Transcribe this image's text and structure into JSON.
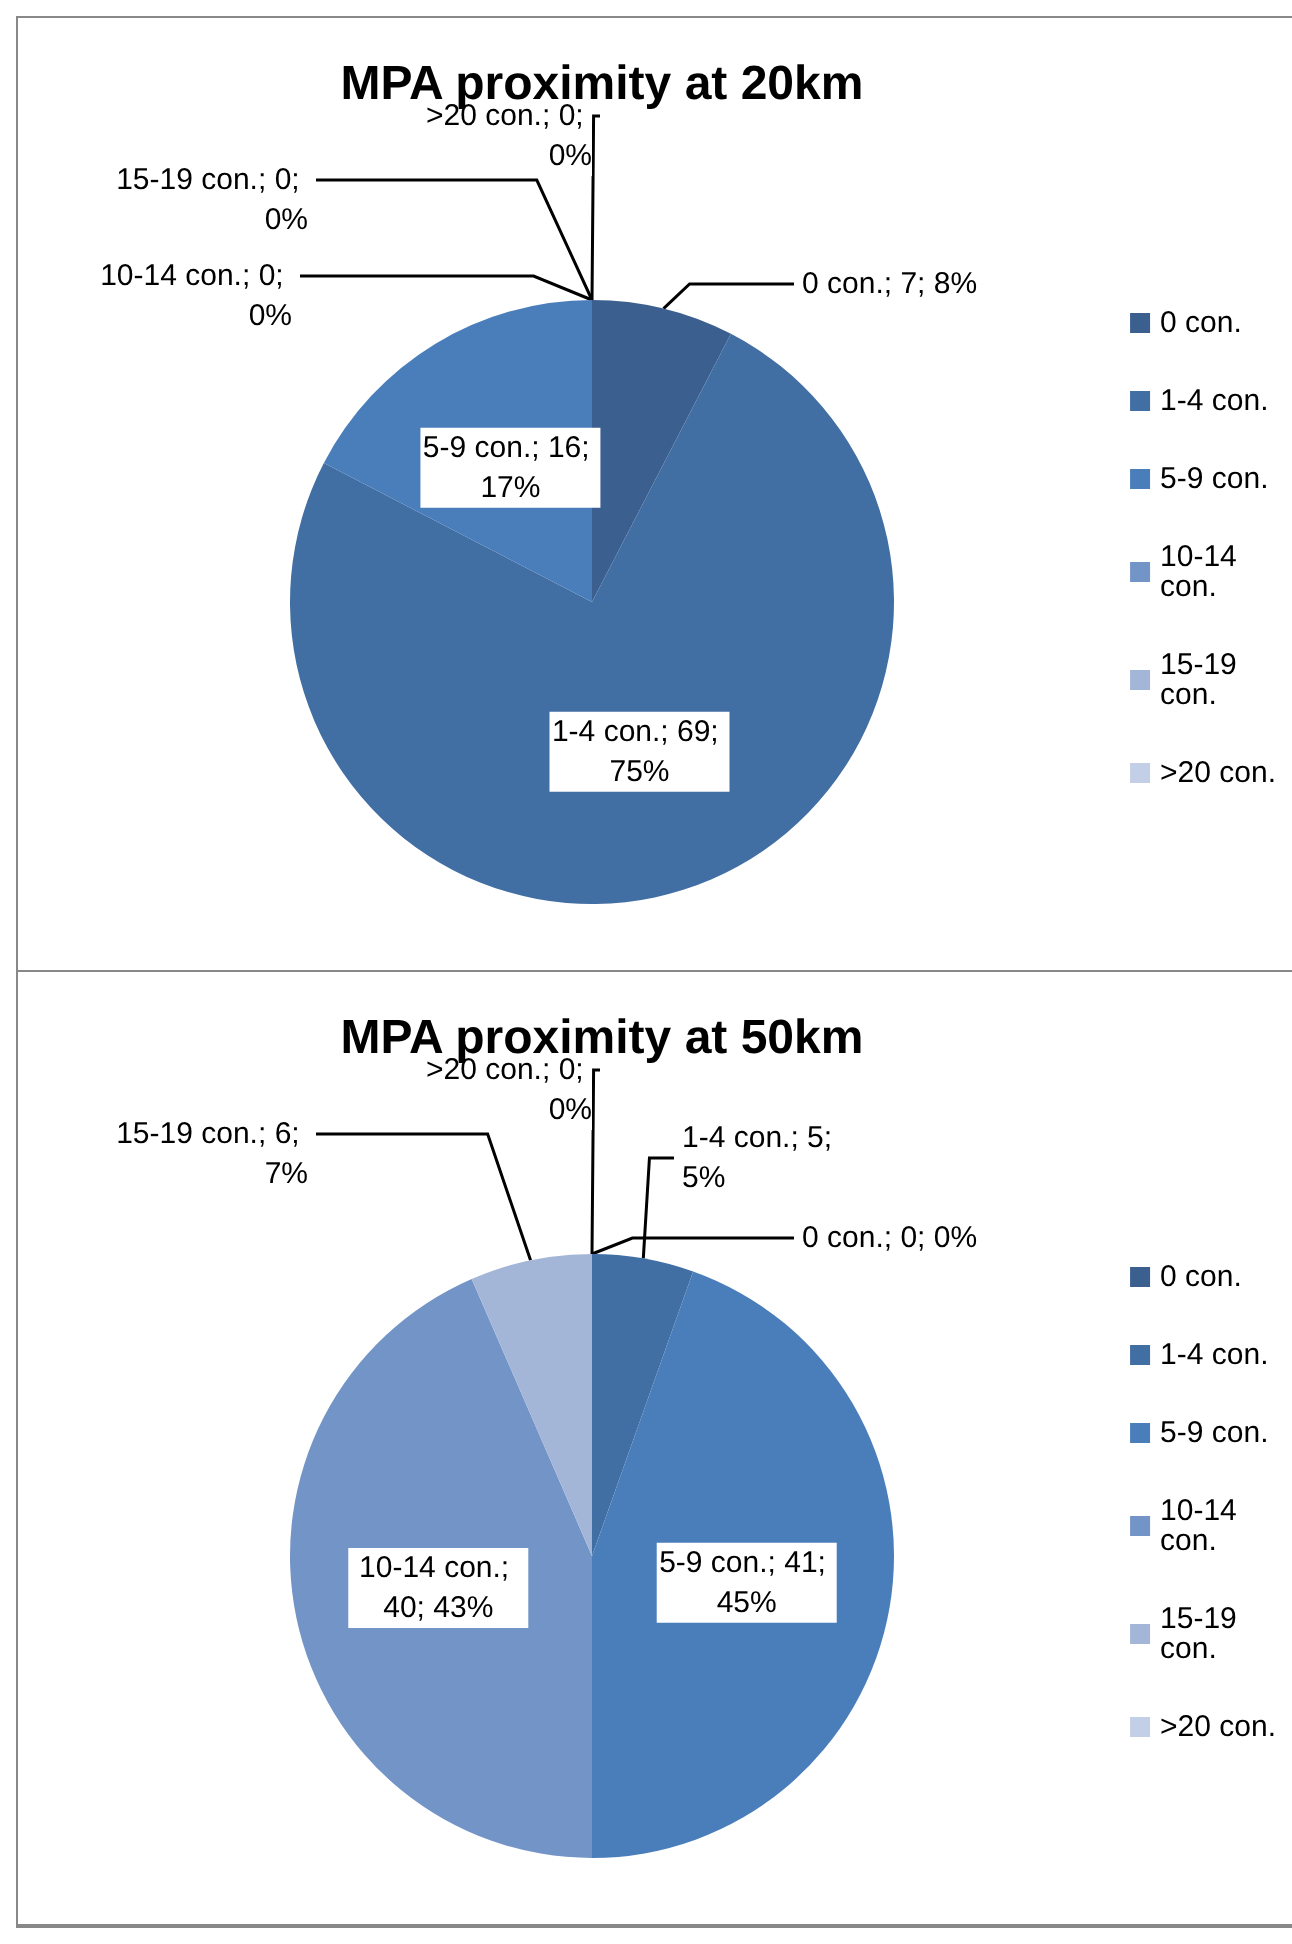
{
  "chart_data": [
    {
      "type": "pie",
      "title": "MPA proximity at 20km",
      "categories": [
        "0 con.",
        "1-4 con.",
        "5-9 con.",
        "10-14 con.",
        "15-19 con.",
        ">20 con."
      ],
      "values": [
        7,
        69,
        16,
        0,
        0,
        0
      ],
      "colors": [
        "#3b5f8e",
        "#416ea3",
        "#4a7ebb",
        "#7394c6",
        "#a4b6d8",
        "#c3cfe6"
      ],
      "value_labels": [
        "0 con.; 7; 8%",
        "1-4 con.; 69; 75%",
        "5-9 con.; 16; 17%",
        "10-14 con.; 0; 0%",
        "15-19 con.; 0; 0%",
        ">20 con.; 0; 0%"
      ],
      "legend": "right"
    },
    {
      "type": "pie",
      "title": "MPA proximity at 50km",
      "categories": [
        "0 con.",
        "1-4 con.",
        "5-9 con.",
        "10-14 con.",
        "15-19 con.",
        ">20 con."
      ],
      "values": [
        0,
        5,
        41,
        40,
        6,
        0
      ],
      "colors": [
        "#3b5f8e",
        "#416ea3",
        "#4a7ebb",
        "#7394c6",
        "#a4b6d8",
        "#c3cfe6"
      ],
      "value_labels": [
        "0 con.; 0; 0%",
        "1-4 con.; 5; 5%",
        "5-9 con.; 41; 45%",
        "10-14 con.; 40; 43%",
        "15-19 con.; 6; 7%",
        ">20 con.; 0; 0%"
      ],
      "legend": "right"
    }
  ]
}
